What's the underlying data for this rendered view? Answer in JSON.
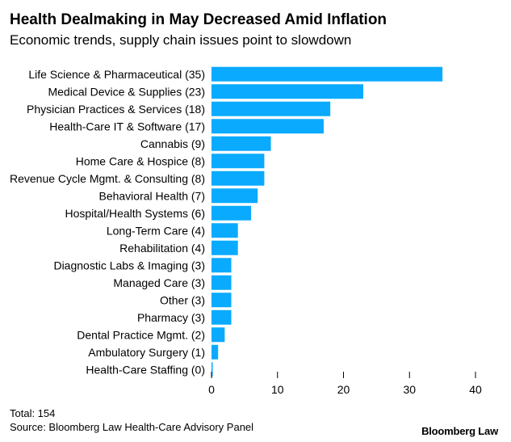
{
  "title": "Health Dealmaking in May Decreased Amid Inflation",
  "subtitle": "Economic trends, supply chain issues point to slowdown",
  "footer": {
    "total": "Total: 154",
    "source": "Source: Bloomberg Law Health-Care Advisory Panel",
    "brand": "Bloomberg Law"
  },
  "colors": {
    "bar": "#0aaaff",
    "axis": "#000000"
  },
  "chart_data": {
    "type": "bar",
    "orientation": "horizontal",
    "categories": [
      "Life Science & Pharmaceutical (35)",
      "Medical Device & Supplies (23)",
      "Physician Practices & Services (18)",
      "Health-Care IT & Software (17)",
      "Cannabis (9)",
      "Home Care & Hospice (8)",
      "Revenue Cycle Mgmt. & Consulting (8)",
      "Behavioral Health (7)",
      "Hospital/Health Systems (6)",
      "Long-Term Care (4)",
      "Rehabilitation (4)",
      "Diagnostic Labs & Imaging (3)",
      "Managed Care (3)",
      "Other (3)",
      "Pharmacy (3)",
      "Dental Practice Mgmt. (2)",
      "Ambulatory Surgery (1)",
      "Health-Care Staffing (0)"
    ],
    "values": [
      35,
      23,
      18,
      17,
      9,
      8,
      8,
      7,
      6,
      4,
      4,
      3,
      3,
      3,
      3,
      2,
      1,
      0
    ],
    "xlim": [
      0,
      40
    ],
    "xticks": [
      0,
      10,
      20,
      30,
      40
    ],
    "grid": false,
    "legend": "none"
  }
}
